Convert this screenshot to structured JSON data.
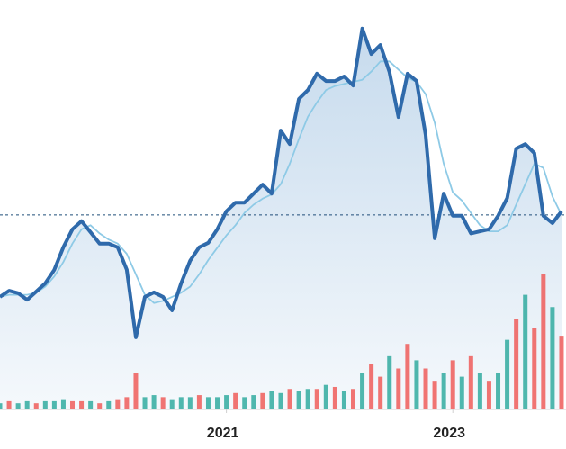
{
  "chart_data": {
    "type": "line",
    "xlim": [
      2019,
      2024
    ],
    "xticks": [
      2021,
      2023
    ],
    "ylim": [
      0,
      100
    ],
    "reference_line": 47.5,
    "reference_color": "#1f4e79",
    "x": [
      2019.0,
      2019.08,
      2019.16,
      2019.24,
      2019.32,
      2019.4,
      2019.48,
      2019.56,
      2019.64,
      2019.72,
      2019.8,
      2019.88,
      2019.96,
      2020.04,
      2020.12,
      2020.2,
      2020.28,
      2020.36,
      2020.44,
      2020.52,
      2020.6,
      2020.68,
      2020.76,
      2020.84,
      2020.92,
      2021.0,
      2021.08,
      2021.16,
      2021.24,
      2021.32,
      2021.4,
      2021.48,
      2021.56,
      2021.64,
      2021.72,
      2021.8,
      2021.88,
      2021.96,
      2022.04,
      2022.12,
      2022.2,
      2022.28,
      2022.36,
      2022.44,
      2022.52,
      2022.6,
      2022.68,
      2022.76,
      2022.84,
      2022.92,
      2023.0,
      2023.08,
      2023.16,
      2023.24,
      2023.32,
      2023.4,
      2023.48,
      2023.56,
      2023.64,
      2023.72,
      2023.8,
      2023.88,
      2023.96
    ],
    "series": [
      {
        "name": "price",
        "color": "#2f6aab",
        "area_color": "#bcd4ea",
        "values": [
          27.5,
          29.0,
          28.4,
          26.8,
          28.8,
          30.8,
          34.1,
          39.6,
          44,
          46,
          43.3,
          40.5,
          40.5,
          39.6,
          34.1,
          17.6,
          27.5,
          28.6,
          27.5,
          24.2,
          30.8,
          36.3,
          39.6,
          40.7,
          44.0,
          48.4,
          50.5,
          50.5,
          52.7,
          54.9,
          52.7,
          68.1,
          64.8,
          75.8,
          78.0,
          82,
          80.2,
          80.2,
          81.3,
          79.1,
          93,
          86.8,
          89,
          82.4,
          71.4,
          82,
          80.2,
          67.0,
          41.8,
          52.7,
          47.3,
          47.3,
          43,
          43.5,
          44.0,
          47.3,
          51.6,
          63.7,
          64.8,
          62.6,
          47.3,
          45.5,
          48.4
        ]
      },
      {
        "name": "average",
        "color": "#8ecae6",
        "values": [
          27.5,
          28,
          28,
          28,
          28.5,
          30,
          32.5,
          36,
          40.5,
          44,
          45,
          43,
          41.5,
          40.5,
          38,
          33,
          28,
          26,
          26.5,
          27.5,
          28.5,
          30,
          33,
          36.5,
          39.5,
          42.5,
          45,
          48,
          50,
          51.5,
          52.5,
          55,
          60,
          66,
          71.5,
          75,
          78,
          79,
          79.5,
          80,
          80.5,
          82.5,
          85,
          85,
          83,
          81,
          80,
          77,
          70,
          60,
          53,
          51,
          48,
          45,
          43.5,
          43.5,
          45,
          50,
          55,
          60,
          59,
          52,
          47.5
        ]
      },
      {
        "name": "volume",
        "type": "bar",
        "values": [
          1.5,
          2,
          1.5,
          2,
          1.5,
          2,
          2,
          2.5,
          2,
          2,
          2,
          1.5,
          2,
          2.5,
          3,
          9,
          3,
          3.5,
          3,
          2.5,
          3,
          3,
          3.5,
          3,
          3,
          3.5,
          4,
          3,
          3.5,
          4,
          4.5,
          4,
          5,
          4.5,
          5,
          5,
          6,
          5.5,
          4.5,
          5,
          9,
          11,
          8,
          13,
          10,
          16,
          12,
          10,
          7,
          9,
          12,
          8,
          13,
          9,
          7,
          9,
          17,
          22,
          28,
          20,
          33,
          25,
          18
        ],
        "colors": [
          "#26a69a",
          "#ef5350",
          "#26a69a",
          "#26a69a",
          "#ef5350",
          "#26a69a",
          "#26a69a",
          "#26a69a",
          "#ef5350",
          "#ef5350",
          "#26a69a",
          "#ef5350",
          "#26a69a",
          "#ef5350",
          "#ef5350",
          "#ef5350",
          "#26a69a",
          "#26a69a",
          "#ef5350",
          "#26a69a",
          "#26a69a",
          "#26a69a",
          "#ef5350",
          "#26a69a",
          "#26a69a",
          "#26a69a",
          "#ef5350",
          "#26a69a",
          "#26a69a",
          "#ef5350",
          "#26a69a",
          "#26a69a",
          "#ef5350",
          "#26a69a",
          "#26a69a",
          "#ef5350",
          "#26a69a",
          "#ef5350",
          "#26a69a",
          "#ef5350",
          "#26a69a",
          "#ef5350",
          "#ef5350",
          "#26a69a",
          "#ef5350",
          "#ef5350",
          "#26a69a",
          "#ef5350",
          "#ef5350",
          "#26a69a",
          "#ef5350",
          "#26a69a",
          "#ef5350",
          "#26a69a",
          "#ef5350",
          "#26a69a",
          "#26a69a",
          "#ef5350",
          "#26a69a",
          "#ef5350",
          "#ef5350",
          "#26a69a",
          "#ef5350"
        ]
      }
    ]
  }
}
